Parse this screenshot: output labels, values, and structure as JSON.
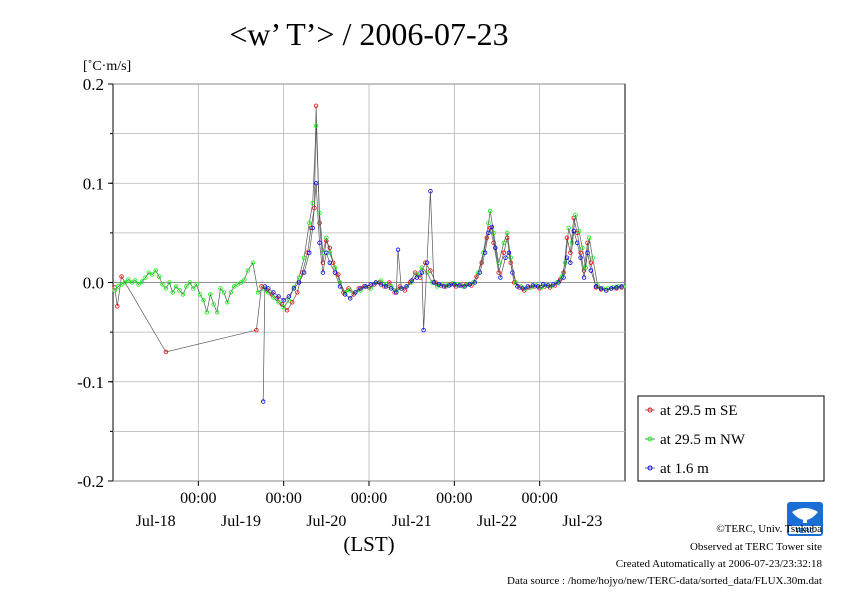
{
  "chart_data": {
    "type": "line",
    "title": "<w’ T’> / 2006-07-23",
    "ylabel": "[˚C·m/s]",
    "xlabel": "(LST)",
    "ylim": [
      -0.2,
      0.2
    ],
    "xlim": [
      0,
      6
    ],
    "x_unit": "days since Jul-18 00:00 (first tick shown as 00:00 under Jul-18 date band)",
    "y_ticks": [
      "0.2",
      "0.1",
      "0.0",
      "-0.1",
      "-0.2"
    ],
    "y_tick_values": [
      0.2,
      0.1,
      0.0,
      -0.1,
      -0.2
    ],
    "x_tick_labels": [
      "00:00",
      "00:00",
      "00:00",
      "00:00",
      "00:00"
    ],
    "x_tick_positions": [
      1,
      2,
      3,
      4,
      5
    ],
    "date_labels": [
      "Jul-18",
      "Jul-19",
      "Jul-20",
      "Jul-21",
      "Jul-22",
      "Jul-23"
    ],
    "grid": true,
    "legend": "bottom-right outside plot",
    "series": [
      {
        "name": "at 29.5 m SE",
        "color": "#ff0000",
        "points": [
          [
            0.02,
            -0.005
          ],
          [
            0.05,
            -0.024
          ],
          [
            0.1,
            0.006
          ],
          [
            0.62,
            -0.07
          ],
          [
            1.68,
            -0.048
          ],
          [
            1.74,
            -0.004
          ],
          [
            1.8,
            -0.008
          ],
          [
            1.86,
            -0.012
          ],
          [
            1.92,
            -0.016
          ],
          [
            1.98,
            -0.022
          ],
          [
            2.04,
            -0.028
          ],
          [
            2.1,
            -0.02
          ],
          [
            2.16,
            -0.01
          ],
          [
            2.22,
            0.01
          ],
          [
            2.28,
            0.03
          ],
          [
            2.32,
            0.055
          ],
          [
            2.36,
            0.075
          ],
          [
            2.38,
            0.178
          ],
          [
            2.42,
            0.06
          ],
          [
            2.46,
            0.02
          ],
          [
            2.5,
            0.042
          ],
          [
            2.54,
            0.035
          ],
          [
            2.58,
            0.02
          ],
          [
            2.64,
            0.008
          ],
          [
            2.7,
            -0.01
          ],
          [
            2.76,
            -0.006
          ],
          [
            2.82,
            -0.012
          ],
          [
            2.88,
            -0.006
          ],
          [
            2.94,
            -0.004
          ],
          [
            3.0,
            -0.005
          ],
          [
            3.06,
            -0.002
          ],
          [
            3.12,
            0.0
          ],
          [
            3.18,
            -0.004
          ],
          [
            3.24,
            0.0
          ],
          [
            3.3,
            -0.01
          ],
          [
            3.36,
            -0.004
          ],
          [
            3.42,
            -0.008
          ],
          [
            3.48,
            0.0
          ],
          [
            3.54,
            0.01
          ],
          [
            3.6,
            0.005
          ],
          [
            3.66,
            0.02
          ],
          [
            3.72,
            0.012
          ],
          [
            3.78,
            0.0
          ],
          [
            3.84,
            -0.003
          ],
          [
            3.9,
            -0.004
          ],
          [
            3.96,
            -0.002
          ],
          [
            4.02,
            -0.004
          ],
          [
            4.08,
            -0.003
          ],
          [
            4.14,
            -0.002
          ],
          [
            4.2,
            -0.003
          ],
          [
            4.26,
            0.006
          ],
          [
            4.32,
            0.02
          ],
          [
            4.38,
            0.045
          ],
          [
            4.42,
            0.055
          ],
          [
            4.46,
            0.04
          ],
          [
            4.52,
            0.01
          ],
          [
            4.58,
            0.03
          ],
          [
            4.62,
            0.045
          ],
          [
            4.66,
            0.02
          ],
          [
            4.7,
            0.0
          ],
          [
            4.76,
            -0.005
          ],
          [
            4.82,
            -0.008
          ],
          [
            4.88,
            -0.005
          ],
          [
            4.94,
            -0.004
          ],
          [
            5.0,
            -0.006
          ],
          [
            5.06,
            -0.004
          ],
          [
            5.12,
            -0.005
          ],
          [
            5.18,
            -0.003
          ],
          [
            5.24,
            0.003
          ],
          [
            5.28,
            0.01
          ],
          [
            5.32,
            0.045
          ],
          [
            5.36,
            0.03
          ],
          [
            5.4,
            0.065
          ],
          [
            5.44,
            0.05
          ],
          [
            5.48,
            0.03
          ],
          [
            5.52,
            0.012
          ],
          [
            5.56,
            0.04
          ],
          [
            5.6,
            0.02
          ],
          [
            5.66,
            -0.005
          ],
          [
            5.72,
            -0.007
          ],
          [
            5.78,
            -0.008
          ],
          [
            5.84,
            -0.006
          ],
          [
            5.9,
            -0.006
          ],
          [
            5.96,
            -0.005
          ]
        ]
      },
      {
        "name": "at 29.5 m NW",
        "color": "#00ff00",
        "points": [
          [
            0.02,
            -0.008
          ],
          [
            0.06,
            -0.004
          ],
          [
            0.1,
            -0.002
          ],
          [
            0.14,
            0.0
          ],
          [
            0.18,
            0.003
          ],
          [
            0.22,
            0.0
          ],
          [
            0.26,
            0.002
          ],
          [
            0.3,
            -0.002
          ],
          [
            0.34,
            0.001
          ],
          [
            0.38,
            0.005
          ],
          [
            0.42,
            0.01
          ],
          [
            0.46,
            0.008
          ],
          [
            0.5,
            0.012
          ],
          [
            0.54,
            0.006
          ],
          [
            0.58,
            -0.002
          ],
          [
            0.62,
            -0.006
          ],
          [
            0.66,
            0.0
          ],
          [
            0.7,
            -0.01
          ],
          [
            0.74,
            -0.004
          ],
          [
            0.78,
            -0.008
          ],
          [
            0.82,
            -0.012
          ],
          [
            0.86,
            -0.004
          ],
          [
            0.9,
            0.0
          ],
          [
            0.94,
            -0.006
          ],
          [
            0.98,
            -0.002
          ],
          [
            1.02,
            -0.012
          ],
          [
            1.06,
            -0.018
          ],
          [
            1.1,
            -0.03
          ],
          [
            1.14,
            -0.012
          ],
          [
            1.18,
            -0.022
          ],
          [
            1.22,
            -0.03
          ],
          [
            1.26,
            -0.006
          ],
          [
            1.3,
            -0.01
          ],
          [
            1.34,
            -0.02
          ],
          [
            1.38,
            -0.01
          ],
          [
            1.42,
            -0.004
          ],
          [
            1.46,
            -0.002
          ],
          [
            1.5,
            0.0
          ],
          [
            1.54,
            0.003
          ],
          [
            1.58,
            0.012
          ],
          [
            1.64,
            0.02
          ],
          [
            1.7,
            -0.01
          ],
          [
            1.76,
            -0.006
          ],
          [
            1.82,
            -0.01
          ],
          [
            1.88,
            -0.015
          ],
          [
            1.94,
            -0.02
          ],
          [
            2.0,
            -0.025
          ],
          [
            2.06,
            -0.018
          ],
          [
            2.12,
            -0.005
          ],
          [
            2.18,
            0.005
          ],
          [
            2.24,
            0.025
          ],
          [
            2.3,
            0.06
          ],
          [
            2.34,
            0.08
          ],
          [
            2.38,
            0.158
          ],
          [
            2.42,
            0.07
          ],
          [
            2.46,
            0.03
          ],
          [
            2.5,
            0.045
          ],
          [
            2.54,
            0.03
          ],
          [
            2.6,
            0.015
          ],
          [
            2.66,
            0.0
          ],
          [
            2.72,
            -0.01
          ],
          [
            2.78,
            -0.008
          ],
          [
            2.84,
            -0.01
          ],
          [
            2.9,
            -0.008
          ],
          [
            2.96,
            -0.004
          ],
          [
            3.02,
            -0.006
          ],
          [
            3.08,
            0.0
          ],
          [
            3.14,
            0.002
          ],
          [
            3.2,
            -0.002
          ],
          [
            3.26,
            -0.004
          ],
          [
            3.32,
            -0.008
          ],
          [
            3.38,
            -0.006
          ],
          [
            3.44,
            -0.004
          ],
          [
            3.5,
            0.0
          ],
          [
            3.56,
            0.008
          ],
          [
            3.62,
            0.015
          ],
          [
            3.68,
            0.01
          ],
          [
            3.74,
            0.0
          ],
          [
            3.8,
            -0.004
          ],
          [
            3.86,
            -0.002
          ],
          [
            3.92,
            -0.003
          ],
          [
            3.98,
            -0.001
          ],
          [
            4.04,
            -0.002
          ],
          [
            4.1,
            -0.004
          ],
          [
            4.16,
            -0.002
          ],
          [
            4.22,
            0.0
          ],
          [
            4.28,
            0.01
          ],
          [
            4.34,
            0.03
          ],
          [
            4.4,
            0.06
          ],
          [
            4.42,
            0.072
          ],
          [
            4.46,
            0.05
          ],
          [
            4.52,
            0.02
          ],
          [
            4.58,
            0.04
          ],
          [
            4.62,
            0.05
          ],
          [
            4.66,
            0.025
          ],
          [
            4.72,
            0.0
          ],
          [
            4.78,
            -0.004
          ],
          [
            4.84,
            -0.006
          ],
          [
            4.9,
            -0.005
          ],
          [
            4.96,
            -0.003
          ],
          [
            5.02,
            -0.005
          ],
          [
            5.08,
            -0.003
          ],
          [
            5.14,
            -0.004
          ],
          [
            5.2,
            0.0
          ],
          [
            5.26,
            0.006
          ],
          [
            5.3,
            0.02
          ],
          [
            5.34,
            0.055
          ],
          [
            5.38,
            0.04
          ],
          [
            5.42,
            0.068
          ],
          [
            5.46,
            0.052
          ],
          [
            5.5,
            0.035
          ],
          [
            5.54,
            0.015
          ],
          [
            5.58,
            0.045
          ],
          [
            5.62,
            0.025
          ],
          [
            5.68,
            -0.003
          ],
          [
            5.74,
            -0.006
          ],
          [
            5.8,
            -0.006
          ],
          [
            5.86,
            -0.005
          ],
          [
            5.92,
            -0.004
          ],
          [
            5.98,
            -0.004
          ]
        ]
      },
      {
        "name": "at 1.6 m",
        "color": "#0000ff",
        "points": [
          [
            1.76,
            -0.12
          ],
          [
            1.78,
            -0.004
          ],
          [
            1.82,
            -0.006
          ],
          [
            1.88,
            -0.01
          ],
          [
            1.94,
            -0.014
          ],
          [
            2.0,
            -0.018
          ],
          [
            2.06,
            -0.014
          ],
          [
            2.12,
            -0.006
          ],
          [
            2.18,
            0.0
          ],
          [
            2.24,
            0.01
          ],
          [
            2.3,
            0.03
          ],
          [
            2.34,
            0.055
          ],
          [
            2.38,
            0.1
          ],
          [
            2.42,
            0.04
          ],
          [
            2.46,
            0.01
          ],
          [
            2.5,
            0.03
          ],
          [
            2.54,
            0.02
          ],
          [
            2.6,
            0.01
          ],
          [
            2.66,
            -0.004
          ],
          [
            2.72,
            -0.012
          ],
          [
            2.78,
            -0.016
          ],
          [
            2.84,
            -0.01
          ],
          [
            2.9,
            -0.006
          ],
          [
            2.96,
            -0.004
          ],
          [
            3.02,
            -0.002
          ],
          [
            3.08,
            0.0
          ],
          [
            3.14,
            -0.002
          ],
          [
            3.2,
            -0.004
          ],
          [
            3.26,
            -0.006
          ],
          [
            3.32,
            -0.01
          ],
          [
            3.34,
            0.033
          ],
          [
            3.38,
            -0.006
          ],
          [
            3.44,
            -0.004
          ],
          [
            3.5,
            0.002
          ],
          [
            3.56,
            0.005
          ],
          [
            3.62,
            0.01
          ],
          [
            3.64,
            -0.048
          ],
          [
            3.68,
            0.02
          ],
          [
            3.72,
            0.092
          ],
          [
            3.76,
            0.0
          ],
          [
            3.82,
            -0.002
          ],
          [
            3.88,
            -0.004
          ],
          [
            3.94,
            -0.003
          ],
          [
            4.0,
            -0.002
          ],
          [
            4.06,
            -0.003
          ],
          [
            4.12,
            -0.004
          ],
          [
            4.18,
            -0.002
          ],
          [
            4.24,
            0.0
          ],
          [
            4.3,
            0.01
          ],
          [
            4.36,
            0.03
          ],
          [
            4.4,
            0.05
          ],
          [
            4.44,
            0.056
          ],
          [
            4.48,
            0.035
          ],
          [
            4.54,
            0.005
          ],
          [
            4.6,
            0.025
          ],
          [
            4.64,
            0.03
          ],
          [
            4.68,
            0.01
          ],
          [
            4.74,
            -0.004
          ],
          [
            4.8,
            -0.006
          ],
          [
            4.86,
            -0.004
          ],
          [
            4.92,
            -0.003
          ],
          [
            4.98,
            -0.004
          ],
          [
            5.04,
            -0.002
          ],
          [
            5.1,
            -0.003
          ],
          [
            5.16,
            -0.002
          ],
          [
            5.22,
            0.0
          ],
          [
            5.28,
            0.005
          ],
          [
            5.32,
            0.025
          ],
          [
            5.36,
            0.02
          ],
          [
            5.4,
            0.052
          ],
          [
            5.44,
            0.04
          ],
          [
            5.48,
            0.025
          ],
          [
            5.52,
            0.005
          ],
          [
            5.56,
            0.03
          ],
          [
            5.6,
            0.012
          ],
          [
            5.66,
            -0.004
          ],
          [
            5.72,
            -0.006
          ],
          [
            5.78,
            -0.008
          ],
          [
            5.84,
            -0.006
          ],
          [
            5.9,
            -0.005
          ],
          [
            5.96,
            -0.004
          ]
        ]
      }
    ]
  },
  "legend": {
    "items": [
      {
        "label": "at 29.5 m SE",
        "color": "#ff0000"
      },
      {
        "label": "at 29.5 m NW",
        "color": "#00ff00"
      },
      {
        "label": "at 1.6 m",
        "color": "#0000ff"
      }
    ]
  },
  "footer": {
    "copyright": "©TERC, Univ. Tsukuba",
    "observed": "Observed at TERC Tower site",
    "created": "Created Automatically at 2006-07-23/23:32:18",
    "source": "Data source : /home/hojyo/new/TERC-data/sorted_data/FLUX.30m.dat"
  },
  "logo": {
    "text": "TERC",
    "color": "#1a6fd6",
    "icon": "terc-logo-icon"
  }
}
